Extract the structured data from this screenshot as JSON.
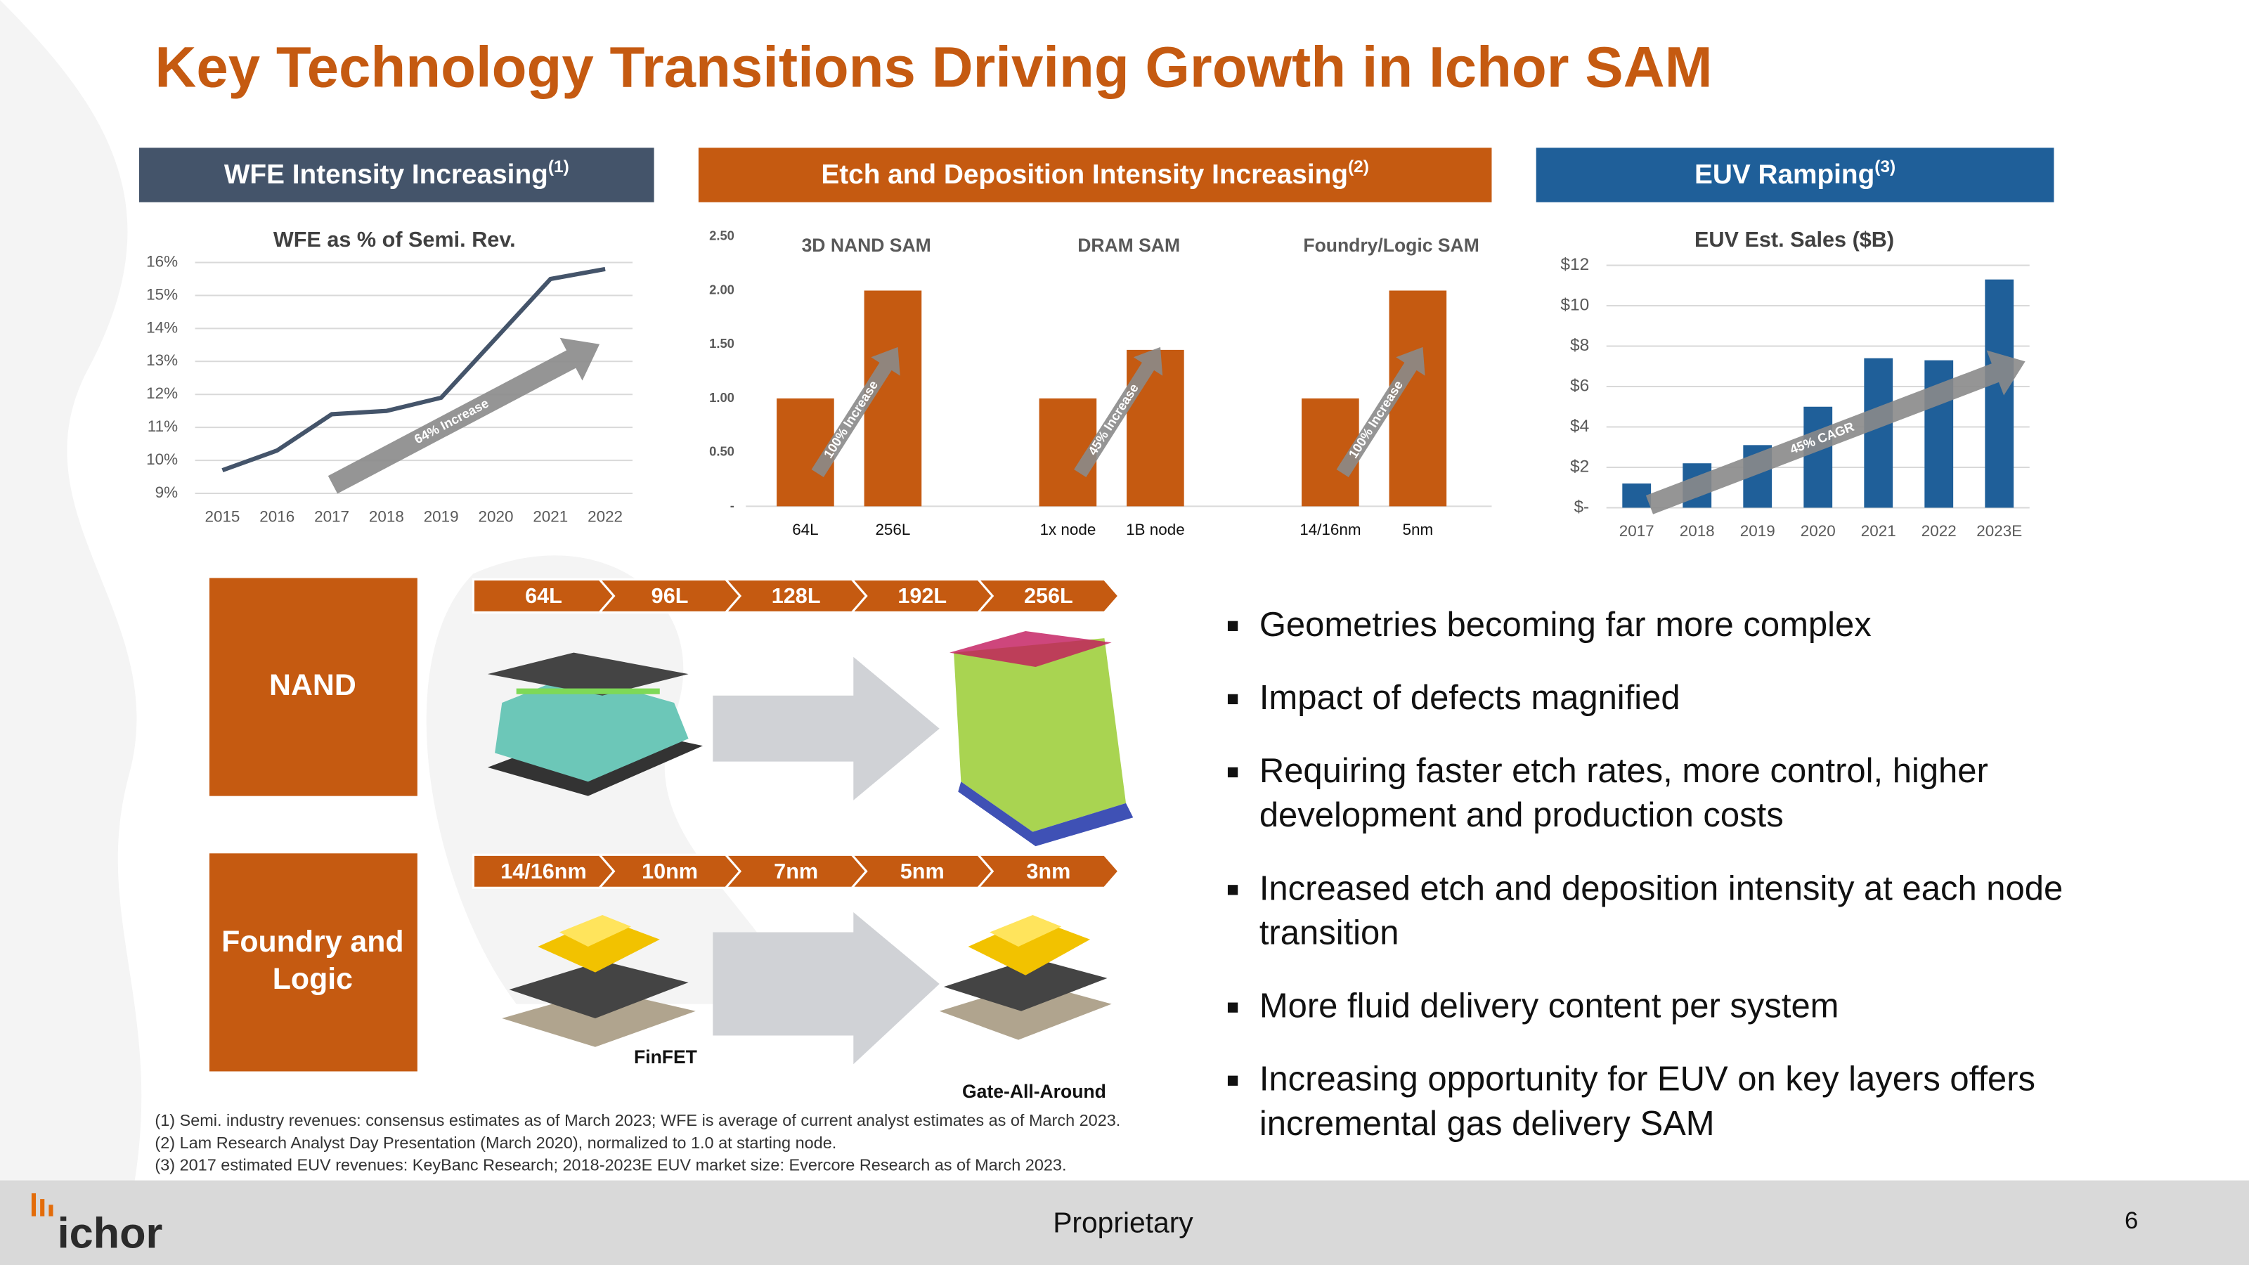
{
  "title": "Key Technology Transitions Driving Growth in Ichor SAM",
  "chart_data": [
    {
      "type": "line",
      "header": "WFE Intensity Increasing",
      "header_note": "(1)",
      "header_color": "#44546a",
      "title": "WFE as % of Semi. Rev.",
      "categories": [
        "2015",
        "2016",
        "2017",
        "2018",
        "2019",
        "2020",
        "2021",
        "2022"
      ],
      "values": [
        9.7,
        10.3,
        11.4,
        11.5,
        11.9,
        13.7,
        15.5,
        15.8
      ],
      "ylim": [
        9,
        16
      ],
      "yticks": [
        {
          "value": 9,
          "label": "9%"
        },
        {
          "value": 10,
          "label": "10%"
        },
        {
          "value": 11,
          "label": "11%"
        },
        {
          "value": 12,
          "label": "12%"
        },
        {
          "value": 13,
          "label": "13%"
        },
        {
          "value": 14,
          "label": "14%"
        },
        {
          "value": 15,
          "label": "15%"
        },
        {
          "value": 16,
          "label": "16%"
        }
      ],
      "color": "#44546a",
      "grid": true,
      "annotation": "64% Increase"
    },
    {
      "type": "bar",
      "header": "Etch and Deposition Intensity Increasing",
      "header_note": "(2)",
      "header_color": "#c55a11",
      "groups": [
        {
          "name": "3D NAND SAM",
          "annotation": "100% Increase"
        },
        {
          "name": "DRAM SAM",
          "annotation": "45% Increase"
        },
        {
          "name": "Foundry/Logic SAM",
          "annotation": "100% Increase"
        }
      ],
      "categories": [
        "64L",
        "256L",
        "1x node",
        "1B node",
        "14/16nm",
        "5nm"
      ],
      "values": [
        1,
        2,
        1,
        1.45,
        1,
        2
      ],
      "ylim": [
        0,
        2.5
      ],
      "yticks": [
        {
          "value": 0,
          "label": "-"
        },
        {
          "value": 0.5,
          "label": "0.50"
        },
        {
          "value": 1,
          "label": "1.00"
        },
        {
          "value": 1.5,
          "label": "1.50"
        },
        {
          "value": 2,
          "label": "2.00"
        },
        {
          "value": 2.5,
          "label": "2.50"
        }
      ],
      "color": "#c55a11",
      "grid": false
    },
    {
      "type": "bar",
      "header": "EUV Ramping",
      "header_note": "(3)",
      "header_color": "#1f5f99",
      "title": "EUV Est. Sales ($B)",
      "categories": [
        "2017",
        "2018",
        "2019",
        "2020",
        "2021",
        "2022",
        "2023E"
      ],
      "values": [
        1.2,
        2.2,
        3.1,
        5.0,
        7.4,
        7.3,
        11.3
      ],
      "ylim": [
        0,
        12
      ],
      "yticks": [
        {
          "value": 0,
          "label": "$-"
        },
        {
          "value": 2,
          "label": "$2"
        },
        {
          "value": 4,
          "label": "$4"
        },
        {
          "value": 6,
          "label": "$6"
        },
        {
          "value": 8,
          "label": "$8"
        },
        {
          "value": 10,
          "label": "$10"
        },
        {
          "value": 12,
          "label": "$12"
        }
      ],
      "color": "#1f5f99",
      "grid": true,
      "annotation": "45% CAGR"
    }
  ],
  "diagram": {
    "rows": [
      {
        "label": [
          "NAND"
        ],
        "steps": [
          "64L",
          "96L",
          "128L",
          "192L",
          "256L"
        ]
      },
      {
        "label": [
          "Foundry and",
          "Logic"
        ],
        "steps": [
          "14/16nm",
          "10nm",
          "7nm",
          "5nm",
          "3nm"
        ],
        "captions": [
          "FinFET",
          "Gate-All-Around"
        ]
      }
    ]
  },
  "bullets": [
    [
      "Geometries becoming far more complex"
    ],
    [
      "Impact of defects magnified"
    ],
    [
      "Requiring faster etch rates, more control, higher",
      "development and production costs"
    ],
    [
      "Increased etch and deposition intensity at each node",
      "transition"
    ],
    [
      "More fluid delivery content per system"
    ],
    [
      "Increasing opportunity for EUV on key layers offers",
      "incremental gas delivery SAM"
    ]
  ],
  "footnotes": [
    "(1) Semi. industry revenues: consensus estimates as of March 2023; WFE is average of current analyst estimates as of March 2023.",
    "(2) Lam Research Analyst Day Presentation (March 2020), normalized to 1.0 at starting node.",
    "(3) 2017 estimated EUV revenues: KeyBanc Research; 2018-2023E EUV market size: Evercore Research as of March 2023."
  ],
  "footer": {
    "logo": "ichor",
    "label": "Proprietary",
    "page": "6"
  }
}
